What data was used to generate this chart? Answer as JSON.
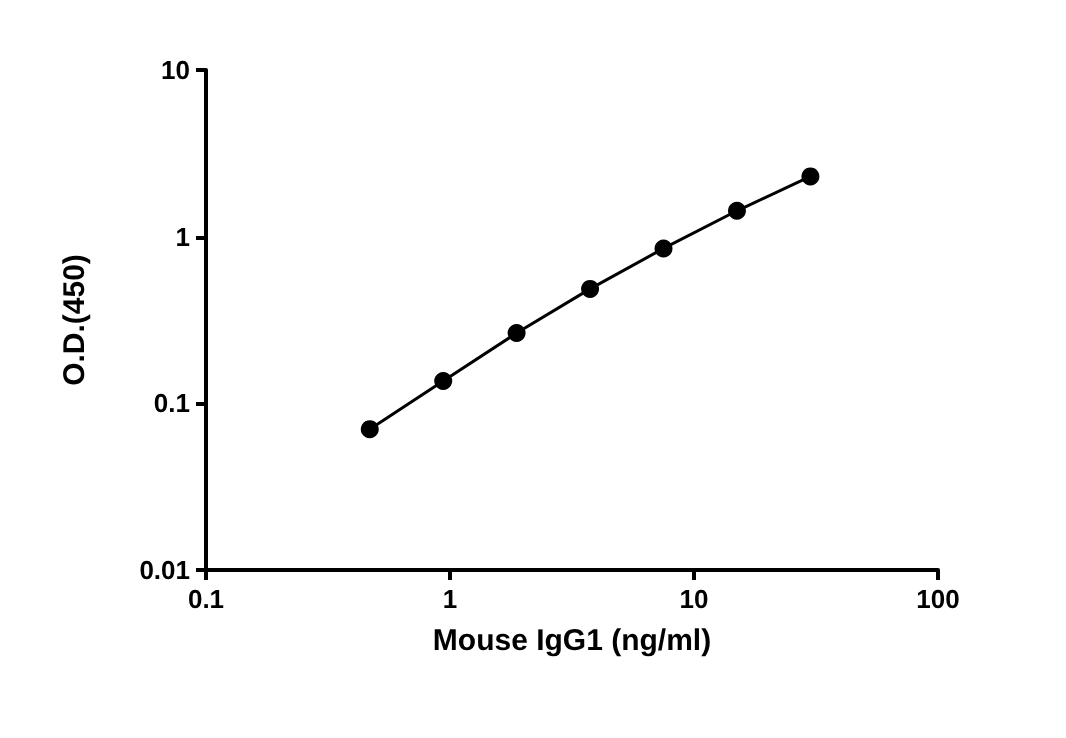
{
  "chart_data": {
    "type": "line",
    "xlabel": "Mouse IgG1 (ng/ml)",
    "ylabel": "O.D.(450)",
    "x": [
      0.469,
      0.938,
      1.875,
      3.75,
      7.5,
      15,
      30
    ],
    "series": [
      {
        "color": "#000000",
        "values": [
          0.07,
          0.136,
          0.264,
          0.486,
          0.85,
          1.43,
          2.3
        ]
      }
    ],
    "log": "xy",
    "xlim": [
      0.1,
      100
    ],
    "ylim": [
      0.01,
      10
    ],
    "xticks": [
      0.1,
      1,
      10,
      100
    ],
    "yticks": [
      0.01,
      0.1,
      1,
      10
    ],
    "grid": false,
    "legend": false,
    "marker": "circle",
    "line_style": "solid"
  }
}
